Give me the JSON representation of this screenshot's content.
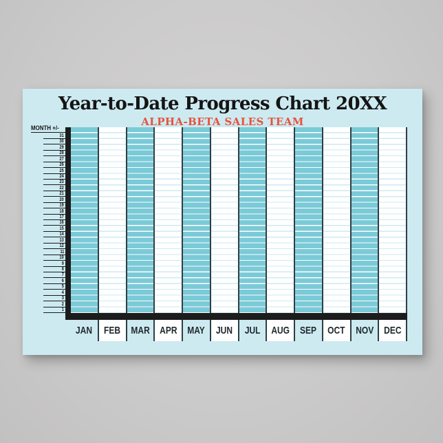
{
  "poster": {
    "title": "Year-to-Date Progress Chart 20XX",
    "subtitle": "ALPHA-BETA SALES TEAM"
  },
  "chart": {
    "y_axis_label": "MONTH +/-",
    "day_rows": [
      "31",
      "30",
      "29",
      "28",
      "27",
      "26",
      "25",
      "24",
      "23",
      "22",
      "21",
      "20",
      "19",
      "18",
      "17",
      "16",
      "15",
      "14",
      "13",
      "12",
      "11",
      "10",
      "9",
      "8",
      "7",
      "6",
      "5",
      "4",
      "3",
      "2",
      "1"
    ],
    "months": [
      "JAN",
      "FEB",
      "MAR",
      "APR",
      "MAY",
      "JUN",
      "JUL",
      "AUG",
      "SEP",
      "OCT",
      "NOV",
      "DEC"
    ],
    "colors": {
      "wall_gray": "#cccbcb",
      "poster_bg": "#cdeaf1",
      "teal_column": "#7bcad7",
      "white_column": "#ffffff",
      "grid_line_on_teal": "#ffffff",
      "grid_line_on_white": "#cdeaf1",
      "axis_black": "#1c1c1c",
      "column_divider": "#2e3e44",
      "title_black": "#141414",
      "subtitle_red": "#e7523c"
    }
  },
  "chart_data": {
    "type": "table",
    "title": "Year-to-Date Progress Chart 20XX",
    "subtitle": "ALPHA-BETA SALES TEAM",
    "ylabel": "MONTH +/-",
    "categories": [
      "JAN",
      "FEB",
      "MAR",
      "APR",
      "MAY",
      "JUN",
      "JUL",
      "AUG",
      "SEP",
      "OCT",
      "NOV",
      "DEC"
    ],
    "row_labels_top_to_bottom": [
      31,
      30,
      29,
      28,
      27,
      26,
      25,
      24,
      23,
      22,
      21,
      20,
      19,
      18,
      17,
      16,
      15,
      14,
      13,
      12,
      11,
      10,
      9,
      8,
      7,
      6,
      5,
      4,
      3,
      2,
      1
    ],
    "y_range": [
      1,
      31
    ],
    "grid": "on",
    "values": [],
    "series": []
  }
}
